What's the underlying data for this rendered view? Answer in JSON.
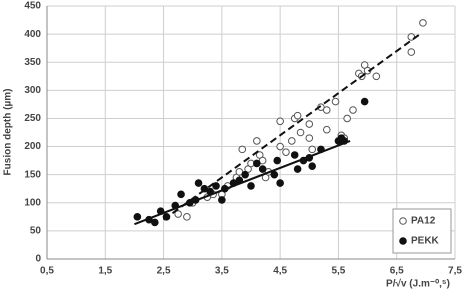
{
  "chart_data": {
    "type": "scatter",
    "x_label": "P/√v (J.m⁻⁰,⁵)",
    "y_label": "Fusion depth (µm)",
    "xlim": [
      0.5,
      7.5
    ],
    "ylim": [
      0,
      450
    ],
    "xticks": [
      {
        "value": 0.5,
        "label": "0,5"
      },
      {
        "value": 1.5,
        "label": "1,5"
      },
      {
        "value": 2.5,
        "label": "2,5"
      },
      {
        "value": 3.5,
        "label": "3,5"
      },
      {
        "value": 4.5,
        "label": "4,5"
      },
      {
        "value": 5.5,
        "label": "5,5"
      },
      {
        "value": 6.5,
        "label": "6,5"
      },
      {
        "value": 7.5,
        "label": "7,5"
      }
    ],
    "yticks": [
      0,
      50,
      100,
      150,
      200,
      250,
      300,
      350,
      400,
      450
    ],
    "grid": true,
    "legend": "bottom-right",
    "series": [
      {
        "name": "PA12",
        "color": "#555555",
        "filled": false,
        "line": "dashed",
        "x": [
          2.75,
          2.9,
          3.0,
          3.25,
          3.35,
          3.5,
          3.6,
          3.75,
          3.8,
          3.85,
          3.95,
          4.0,
          4.1,
          4.15,
          4.2,
          4.25,
          4.3,
          4.5,
          4.5,
          4.6,
          4.7,
          4.75,
          4.8,
          4.85,
          5.0,
          5.0,
          5.05,
          5.2,
          5.3,
          5.3,
          5.45,
          5.55,
          5.6,
          5.65,
          5.75,
          5.85,
          5.9,
          5.95,
          6.0,
          6.15,
          6.75,
          6.75,
          6.95
        ],
        "values": [
          80,
          75,
          100,
          110,
          115,
          115,
          130,
          145,
          155,
          195,
          160,
          170,
          210,
          185,
          175,
          145,
          155,
          245,
          200,
          190,
          210,
          250,
          255,
          225,
          240,
          215,
          195,
          270,
          265,
          230,
          280,
          220,
          215,
          250,
          265,
          330,
          325,
          345,
          335,
          325,
          395,
          368,
          420
        ],
        "trend": {
          "x": [
            2.5,
            6.9
          ],
          "y": [
            70,
            400
          ]
        }
      },
      {
        "name": "PEKK",
        "color": "#111111",
        "filled": true,
        "line": "solid",
        "x": [
          2.05,
          2.25,
          2.35,
          2.45,
          2.55,
          2.7,
          2.8,
          2.95,
          3.05,
          3.1,
          3.2,
          3.3,
          3.4,
          3.5,
          3.55,
          3.7,
          3.8,
          3.9,
          4.0,
          4.1,
          4.2,
          4.4,
          4.45,
          4.5,
          4.75,
          4.8,
          4.9,
          5.0,
          5.05,
          5.2,
          5.5,
          5.55,
          5.6,
          5.95
        ],
        "values": [
          75,
          70,
          65,
          85,
          75,
          95,
          115,
          100,
          105,
          135,
          125,
          120,
          130,
          105,
          125,
          135,
          140,
          150,
          130,
          170,
          160,
          150,
          175,
          135,
          185,
          160,
          175,
          180,
          165,
          195,
          210,
          215,
          210,
          280
        ],
        "trend": {
          "x": [
            2.0,
            5.7
          ],
          "y": [
            62,
            210
          ]
        }
      }
    ]
  }
}
